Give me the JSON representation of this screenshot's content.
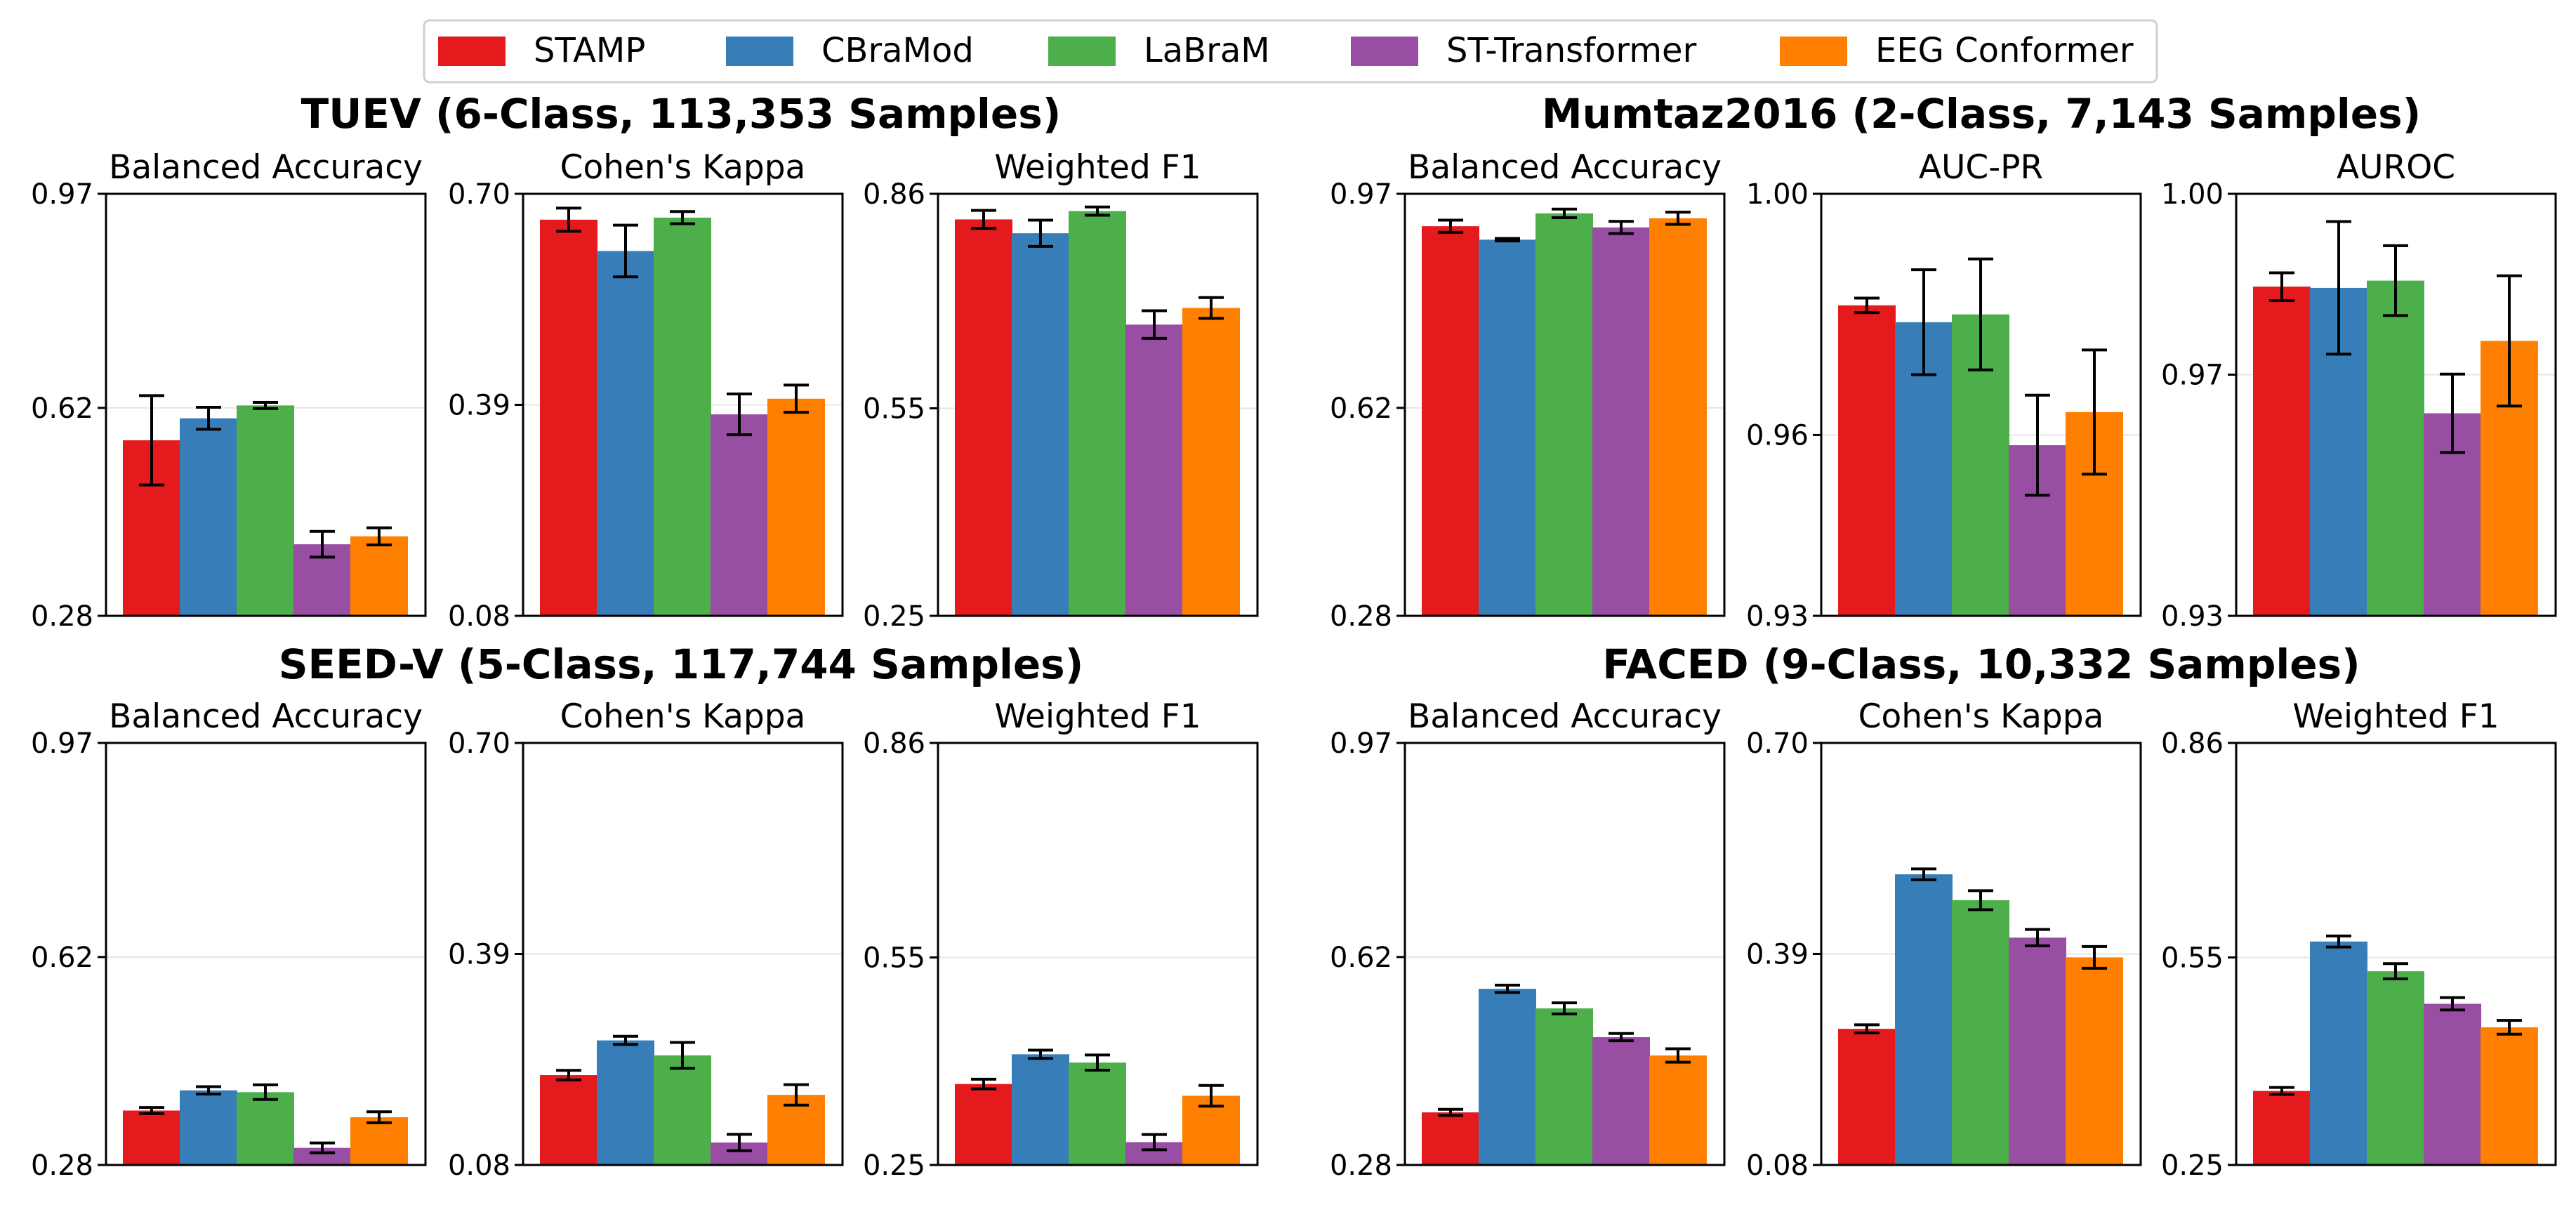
{
  "legend": {
    "series": [
      {
        "name": "STAMP",
        "color": "#e41a1c"
      },
      {
        "name": "CBraMod",
        "color": "#377eb8"
      },
      {
        "name": "LaBraM",
        "color": "#4daf4a"
      },
      {
        "name": "ST-Transformer",
        "color": "#984ea3"
      },
      {
        "name": "EEG Conformer",
        "color": "#ff7f00"
      }
    ]
  },
  "gridline_color": "#e6e6e6",
  "chart_data": [
    {
      "type": "bar",
      "title": "TUEV (6-Class, 113,353 Samples)",
      "panels": [
        {
          "title": "Balanced Accuracy",
          "ylim": [
            0.28,
            0.97
          ],
          "ticks": [
            "0.28",
            "0.62",
            "0.97"
          ],
          "gridline": 0.62,
          "values": [
            0.567,
            0.603,
            0.624,
            0.397,
            0.41
          ],
          "errors": [
            0.073,
            0.018,
            0.005,
            0.021,
            0.014
          ]
        },
        {
          "title": "Cohen's Kappa",
          "ylim": [
            0.08,
            0.7
          ],
          "ticks": [
            "0.08",
            "0.39",
            "0.70"
          ],
          "gridline": 0.39,
          "values": [
            0.662,
            0.616,
            0.665,
            0.376,
            0.399
          ],
          "errors": [
            0.017,
            0.038,
            0.009,
            0.03,
            0.02
          ]
        },
        {
          "title": "Weighted F1",
          "ylim": [
            0.25,
            0.86
          ],
          "ticks": [
            "0.25",
            "0.55",
            "0.86"
          ],
          "gridline": 0.55,
          "values": [
            0.823,
            0.803,
            0.835,
            0.671,
            0.695
          ],
          "errors": [
            0.013,
            0.019,
            0.006,
            0.02,
            0.015
          ]
        }
      ]
    },
    {
      "type": "bar",
      "title": "Mumtaz2016 (2-Class, 7,143 Samples)",
      "panels": [
        {
          "title": "Balanced Accuracy",
          "ylim": [
            0.28,
            0.97
          ],
          "ticks": [
            "0.28",
            "0.62",
            "0.97"
          ],
          "gridline": 0.62,
          "values": [
            0.917,
            0.895,
            0.938,
            0.915,
            0.93
          ],
          "errors": [
            0.01,
            0.002,
            0.007,
            0.01,
            0.01
          ]
        },
        {
          "title": "AUC-PR",
          "ylim": [
            0.93,
            1.0
          ],
          "ticks": [
            "0.93",
            "1.00"
          ],
          "gridline": 0.96,
          "gridline_label": "0.96",
          "values": [
            0.9815,
            0.9787,
            0.98,
            0.9583,
            0.9638
          ],
          "errors": [
            0.0012,
            0.0087,
            0.0092,
            0.0083,
            0.0103
          ]
        },
        {
          "title": "AUROC",
          "ylim": [
            0.93,
            1.0
          ],
          "ticks": [
            "0.93",
            "1.00"
          ],
          "gridline": 0.97,
          "gridline_label": "0.97",
          "values": [
            0.9846,
            0.9844,
            0.9856,
            0.9636,
            0.9756
          ],
          "errors": [
            0.0023,
            0.011,
            0.0058,
            0.0065,
            0.0108
          ]
        }
      ]
    },
    {
      "type": "bar",
      "title": "SEED-V (5-Class, 117,744 Samples)",
      "panels": [
        {
          "title": "Balanced Accuracy",
          "ylim": [
            0.28,
            0.97
          ],
          "ticks": [
            "0.28",
            "0.62",
            "0.97"
          ],
          "gridline": 0.62,
          "values": [
            0.369,
            0.402,
            0.399,
            0.308,
            0.358
          ],
          "errors": [
            0.005,
            0.006,
            0.012,
            0.008,
            0.009
          ]
        },
        {
          "title": "Cohen's Kappa",
          "ylim": [
            0.08,
            0.7
          ],
          "ticks": [
            "0.08",
            "0.39",
            "0.70"
          ],
          "gridline": 0.39,
          "values": [
            0.212,
            0.263,
            0.241,
            0.113,
            0.183
          ],
          "errors": [
            0.007,
            0.006,
            0.019,
            0.012,
            0.015
          ]
        },
        {
          "title": "Weighted F1",
          "ylim": [
            0.25,
            0.86
          ],
          "ticks": [
            "0.25",
            "0.55",
            "0.86"
          ],
          "gridline": 0.55,
          "values": [
            0.367,
            0.41,
            0.398,
            0.283,
            0.35
          ],
          "errors": [
            0.007,
            0.006,
            0.011,
            0.011,
            0.015
          ]
        }
      ]
    },
    {
      "type": "bar",
      "title": "FACED (9-Class, 10,332 Samples)",
      "panels": [
        {
          "title": "Balanced Accuracy",
          "ylim": [
            0.28,
            0.97
          ],
          "ticks": [
            "0.28",
            "0.62",
            "0.97"
          ],
          "gridline": 0.62,
          "values": [
            0.366,
            0.568,
            0.536,
            0.489,
            0.459
          ],
          "errors": [
            0.005,
            0.006,
            0.009,
            0.006,
            0.011
          ]
        },
        {
          "title": "Cohen's Kappa",
          "ylim": [
            0.08,
            0.7
          ],
          "ticks": [
            "0.08",
            "0.39",
            "0.70"
          ],
          "gridline": 0.39,
          "values": [
            0.28,
            0.507,
            0.469,
            0.414,
            0.385
          ],
          "errors": [
            0.006,
            0.008,
            0.014,
            0.012,
            0.016
          ]
        },
        {
          "title": "Weighted F1",
          "ylim": [
            0.25,
            0.86
          ],
          "ticks": [
            "0.25",
            "0.55",
            "0.86"
          ],
          "gridline": 0.55,
          "values": [
            0.357,
            0.573,
            0.53,
            0.483,
            0.449
          ],
          "errors": [
            0.005,
            0.008,
            0.011,
            0.009,
            0.01
          ]
        }
      ]
    }
  ]
}
